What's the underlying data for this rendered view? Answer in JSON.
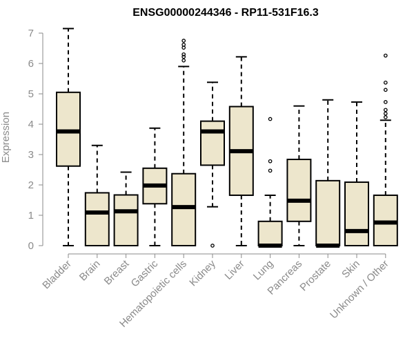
{
  "chart_data": {
    "type": "boxplot",
    "title": "ENSG00000244346 - RP11-531F16.3",
    "xlabel": "",
    "ylabel": "Expression",
    "ylim": [
      0,
      7
    ],
    "yticks": [
      0,
      1,
      2,
      3,
      4,
      5,
      6,
      7
    ],
    "categories": [
      "Bladder",
      "Brain",
      "Breast",
      "Gastric",
      "Hematopoietic cells",
      "Kidney",
      "Liver",
      "Lung",
      "Pancreas",
      "Prostate",
      "Skin",
      "Unknown / Other"
    ],
    "box_color": "#ede6cc",
    "grid": false,
    "boxes": [
      {
        "min": 0.0,
        "q1": 2.62,
        "median": 3.76,
        "q3": 5.05,
        "max": 7.15,
        "outliers": []
      },
      {
        "min": 0.0,
        "q1": 0.0,
        "median": 1.09,
        "q3": 1.74,
        "max": 3.3,
        "outliers": []
      },
      {
        "min": 0.0,
        "q1": 0.0,
        "median": 1.13,
        "q3": 1.67,
        "max": 2.42,
        "outliers": []
      },
      {
        "min": 0.0,
        "q1": 1.38,
        "median": 1.98,
        "q3": 2.55,
        "max": 3.87,
        "outliers": []
      },
      {
        "min": 0.0,
        "q1": 0.0,
        "median": 1.27,
        "q3": 2.37,
        "max": 5.9,
        "outliers": [
          6.1,
          6.22,
          6.3,
          6.52,
          6.62,
          6.75
        ]
      },
      {
        "min": 1.28,
        "q1": 2.65,
        "median": 3.76,
        "q3": 4.1,
        "max": 5.38,
        "outliers": [
          0.0
        ]
      },
      {
        "min": 0.0,
        "q1": 1.66,
        "median": 3.11,
        "q3": 4.58,
        "max": 6.22,
        "outliers": []
      },
      {
        "min": 0.0,
        "q1": 0.0,
        "median": 0.0,
        "q3": 0.8,
        "max": 1.66,
        "outliers": [
          2.47,
          2.78,
          4.17
        ]
      },
      {
        "min": 0.0,
        "q1": 0.8,
        "median": 1.48,
        "q3": 2.84,
        "max": 4.6,
        "outliers": []
      },
      {
        "min": 0.0,
        "q1": 0.0,
        "median": 0.0,
        "q3": 2.14,
        "max": 4.8,
        "outliers": []
      },
      {
        "min": 0.0,
        "q1": 0.0,
        "median": 0.48,
        "q3": 2.09,
        "max": 4.73,
        "outliers": []
      },
      {
        "min": 0.0,
        "q1": 0.0,
        "median": 0.76,
        "q3": 1.66,
        "max": 4.13,
        "outliers": [
          4.23,
          4.35,
          4.47,
          4.73,
          5.13,
          5.37,
          6.26
        ]
      }
    ]
  }
}
